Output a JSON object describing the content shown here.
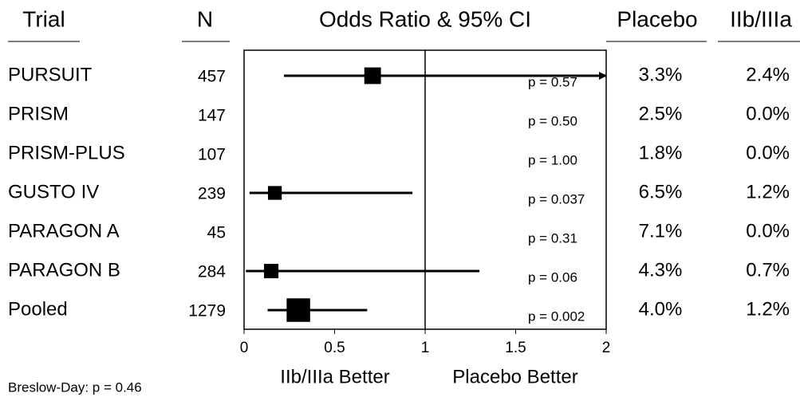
{
  "chart_data": {
    "type": "forest",
    "title": "Odds Ratio & 95% CI",
    "headers": {
      "trial": "Trial",
      "n": "N",
      "placebo": "Placebo",
      "treatment": "IIb/IIIa"
    },
    "rows": [
      {
        "name": "PURSUIT",
        "n": 457,
        "or": 0.71,
        "lo": 0.22,
        "hi": 2.3,
        "p": "p = 0.57",
        "placebo": "3.3%",
        "treatment": "2.4%"
      },
      {
        "name": "PRISM",
        "n": 147,
        "or": null,
        "lo": null,
        "hi": null,
        "p": "p = 0.50",
        "placebo": "2.5%",
        "treatment": "0.0%"
      },
      {
        "name": "PRISM-PLUS",
        "n": 107,
        "or": null,
        "lo": null,
        "hi": null,
        "p": "p = 1.00",
        "placebo": "1.8%",
        "treatment": "0.0%"
      },
      {
        "name": "GUSTO IV",
        "n": 239,
        "or": 0.17,
        "lo": 0.03,
        "hi": 0.93,
        "p": "p = 0.037",
        "placebo": "6.5%",
        "treatment": "1.2%"
      },
      {
        "name": "PARAGON A",
        "n": 45,
        "or": null,
        "lo": null,
        "hi": null,
        "p": "p = 0.31",
        "placebo": "7.1%",
        "treatment": "0.0%"
      },
      {
        "name": "PARAGON B",
        "n": 284,
        "or": 0.15,
        "lo": 0.01,
        "hi": 1.3,
        "p": "p = 0.06",
        "placebo": "4.3%",
        "treatment": "0.7%"
      },
      {
        "name": "Pooled",
        "n": 1279,
        "or": 0.3,
        "lo": 0.13,
        "hi": 0.68,
        "p": "p = 0.002",
        "placebo": "4.0%",
        "treatment": "1.2%"
      }
    ],
    "xlim": [
      0,
      2
    ],
    "xticks": [
      0,
      0.5,
      1,
      1.5,
      2
    ],
    "reference": 1,
    "left_label": "IIb/IIIa Better",
    "right_label": "Placebo Better",
    "footnote": "Breslow-Day: p = 0.46",
    "color": "#000000"
  }
}
